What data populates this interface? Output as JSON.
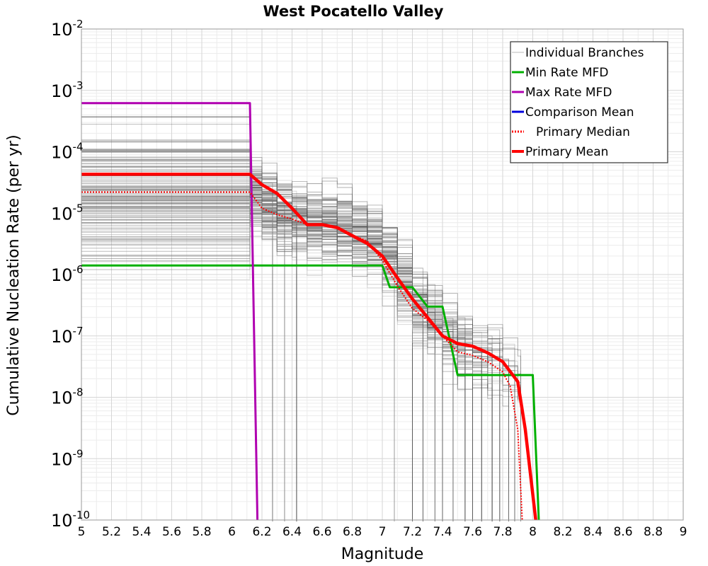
{
  "chart_data": {
    "type": "line",
    "title": "West Pocatello Valley",
    "xlabel": "Magnitude",
    "ylabel": "Cumulative Nucleation Rate (per yr)",
    "xlim": [
      5,
      9
    ],
    "ylim": [
      1e-10,
      0.01
    ],
    "yscale": "log",
    "grid": true,
    "x_ticks": [
      "5",
      "5.2",
      "5.4",
      "5.6",
      "5.8",
      "6",
      "6.2",
      "6.4",
      "6.6",
      "6.8",
      "7",
      "7.2",
      "7.4",
      "7.6",
      "7.8",
      "8",
      "8.2",
      "8.4",
      "8.6",
      "8.8",
      "9"
    ],
    "y_ticks": [
      {
        "base": "10",
        "exp": "-10"
      },
      {
        "base": "10",
        "exp": "-9"
      },
      {
        "base": "10",
        "exp": "-8"
      },
      {
        "base": "10",
        "exp": "-7"
      },
      {
        "base": "10",
        "exp": "-6"
      },
      {
        "base": "10",
        "exp": "-5"
      },
      {
        "base": "10",
        "exp": "-4"
      },
      {
        "base": "10",
        "exp": "-3"
      },
      {
        "base": "10",
        "exp": "-2"
      }
    ],
    "legend_position": "top-right",
    "legend": [
      {
        "label": "Individual Branches",
        "color": "#c8c8c8",
        "style": "solid-thin"
      },
      {
        "label": "Min Rate MFD",
        "color": "#00b000",
        "style": "solid"
      },
      {
        "label": "Max Rate MFD",
        "color": "#b000b0",
        "style": "solid"
      },
      {
        "label": "Comparison Mean",
        "color": "#0000dd",
        "style": "solid"
      },
      {
        "label": "Primary Median",
        "color": "#ff0000",
        "style": "dotted"
      },
      {
        "label": "Primary Mean",
        "color": "#ff0000",
        "style": "solid-thick"
      }
    ],
    "series": [
      {
        "name": "Min Rate MFD",
        "color": "#00b000",
        "x": [
          5.0,
          7.0,
          7.05,
          7.2,
          7.3,
          7.4,
          7.5,
          8.0,
          8.04
        ],
        "y": [
          1.4e-06,
          1.4e-06,
          6.2e-07,
          6.2e-07,
          3e-07,
          3e-07,
          2.3e-08,
          2.3e-08,
          1e-10
        ]
      },
      {
        "name": "Max Rate MFD",
        "color": "#b000b0",
        "x": [
          5.0,
          6.12,
          6.17
        ],
        "y": [
          0.00062,
          0.00062,
          1e-10
        ]
      },
      {
        "name": "Primary Median",
        "color": "#ff0000",
        "x": [
          5.0,
          6.12,
          6.2,
          6.3,
          6.4,
          6.5,
          6.6,
          6.7,
          6.8,
          6.9,
          7.0,
          7.1,
          7.2,
          7.3,
          7.4,
          7.5,
          7.6,
          7.7,
          7.8,
          7.85,
          7.9,
          7.93
        ],
        "y": [
          2.2e-05,
          2.2e-05,
          1.2e-05,
          9.5e-06,
          8e-06,
          6.5e-06,
          6.3e-06,
          5.8e-06,
          4.4e-06,
          3.5e-06,
          1.7e-06,
          6.5e-07,
          2.8e-07,
          1.8e-07,
          1e-07,
          5.5e-08,
          4.8e-08,
          3.8e-08,
          2.6e-08,
          1.5e-08,
          3e-09,
          1e-10
        ]
      },
      {
        "name": "Primary Mean",
        "color": "#ff0000",
        "x": [
          5.0,
          6.12,
          6.2,
          6.3,
          6.4,
          6.5,
          6.6,
          6.7,
          6.8,
          6.9,
          7.0,
          7.1,
          7.2,
          7.3,
          7.4,
          7.5,
          7.6,
          7.7,
          7.8,
          7.9,
          7.95,
          8.02
        ],
        "y": [
          4.3e-05,
          4.3e-05,
          2.9e-05,
          2.1e-05,
          1.2e-05,
          6.5e-06,
          6.5e-06,
          5.8e-06,
          4.3e-06,
          3.2e-06,
          2e-06,
          8.8e-07,
          4e-07,
          2e-07,
          1e-07,
          7.5e-08,
          6.8e-08,
          5.3e-08,
          3.8e-08,
          1.8e-08,
          3e-09,
          1e-10
        ]
      }
    ]
  }
}
